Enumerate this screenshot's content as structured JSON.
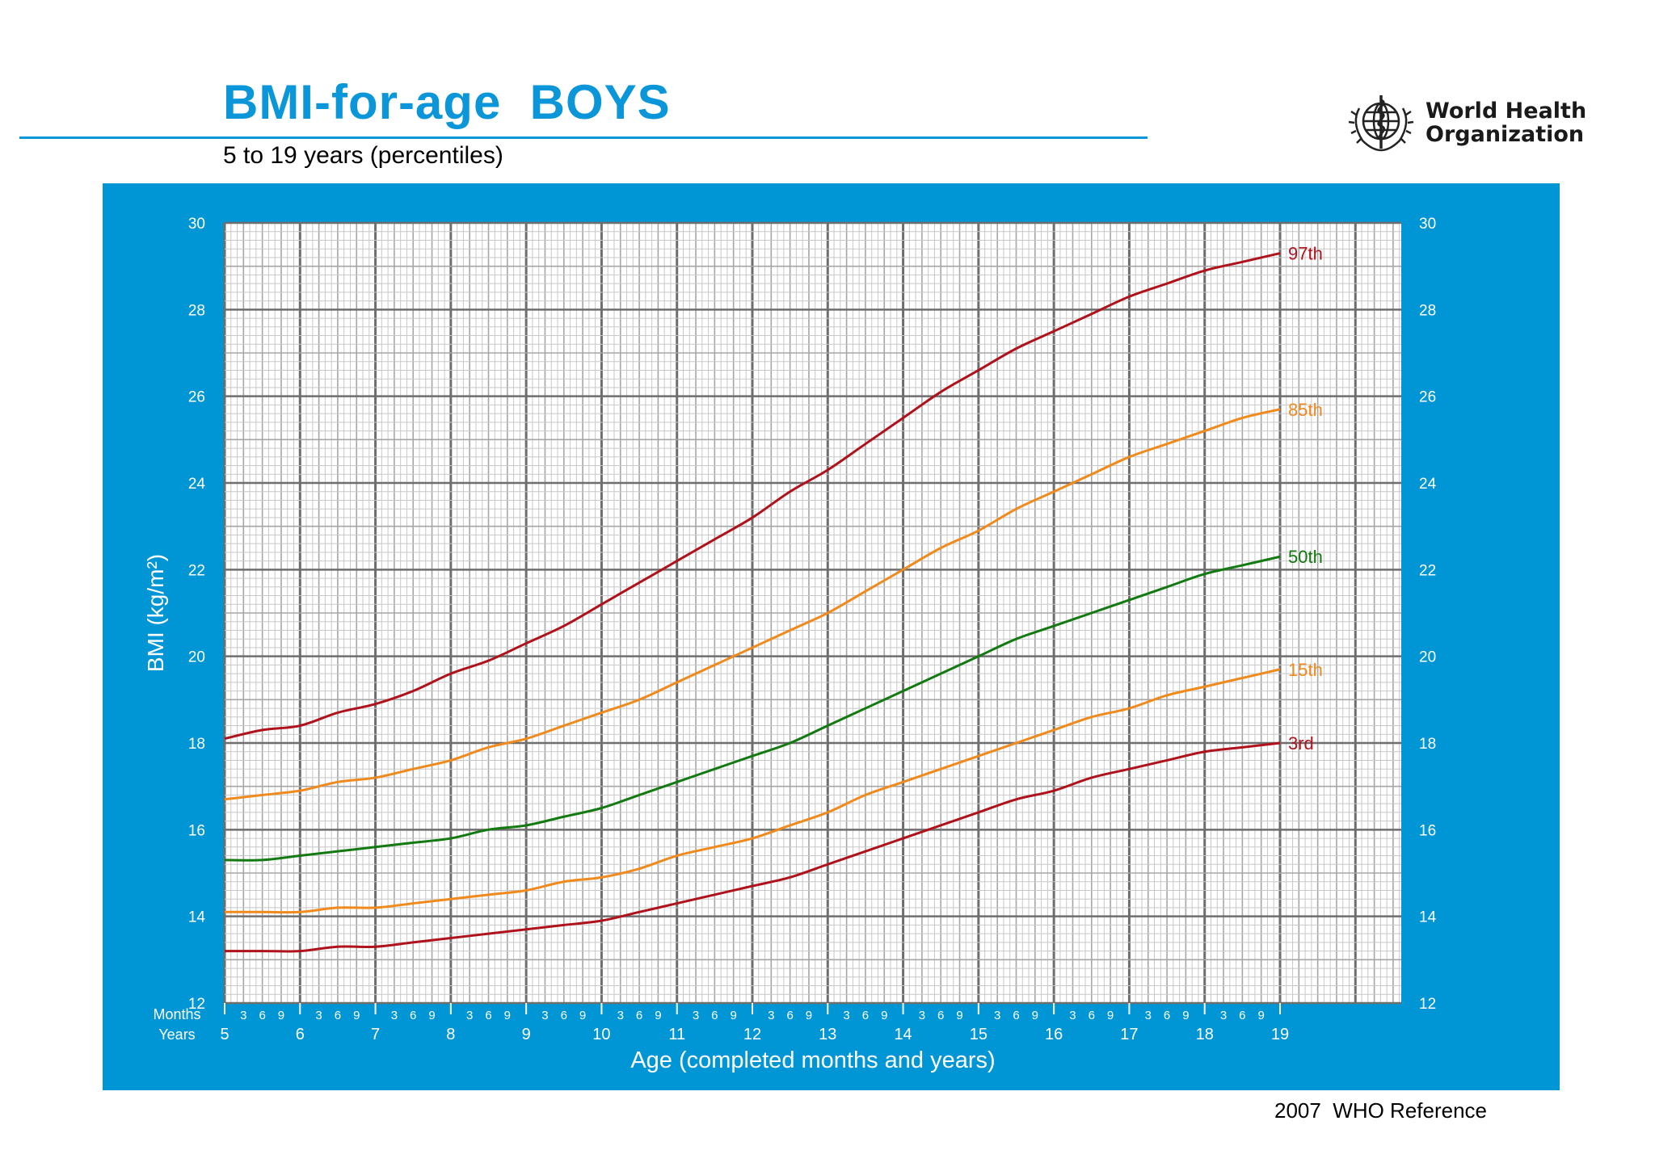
{
  "header": {
    "title": "BMI-for-age  BOYS",
    "subtitle": "5 to 19 years (percentiles)"
  },
  "logo": {
    "icon": "who-emblem-icon",
    "line1": "World Health",
    "line2": "Organization"
  },
  "footer": {
    "reference": "2007  WHO Reference"
  },
  "colors": {
    "brand_blue": "#0096d6",
    "title_blue": "#0a96d8",
    "p97": "#b0121b",
    "p85": "#f08a1d",
    "p50": "#137a12",
    "p15": "#f08a1d",
    "p3": "#b0121b"
  },
  "chart_data": {
    "type": "line",
    "ylabel": "BMI (kg/m²)",
    "xlabel": "Age (completed months and years)",
    "xlim": [
      5,
      19
    ],
    "ylim": [
      12,
      30
    ],
    "y_ticks": [
      "12",
      "14",
      "16",
      "18",
      "20",
      "22",
      "24",
      "26",
      "28",
      "30"
    ],
    "x_ticks_years": [
      "5",
      "6",
      "7",
      "8",
      "9",
      "10",
      "11",
      "12",
      "13",
      "14",
      "15",
      "16",
      "17",
      "18",
      "19"
    ],
    "month_ticks": [
      "3",
      "6",
      "9"
    ],
    "row_label_months": "Months",
    "row_label_years": "Years",
    "grid": true,
    "legend": "right-edge labels",
    "x": [
      5,
      5.5,
      6,
      6.5,
      7,
      7.5,
      8,
      8.5,
      9,
      9.5,
      10,
      10.5,
      11,
      11.5,
      12,
      12.5,
      13,
      13.5,
      14,
      14.5,
      15,
      15.5,
      16,
      16.5,
      17,
      17.5,
      18,
      18.5,
      19
    ],
    "series": [
      {
        "name": "97th",
        "color_key": "p97",
        "values": [
          18.1,
          18.3,
          18.4,
          18.7,
          18.9,
          19.2,
          19.6,
          19.9,
          20.3,
          20.7,
          21.2,
          21.7,
          22.2,
          22.7,
          23.2,
          23.8,
          24.3,
          24.9,
          25.5,
          26.1,
          26.6,
          27.1,
          27.5,
          27.9,
          28.3,
          28.6,
          28.9,
          29.1,
          29.3
        ]
      },
      {
        "name": "85th",
        "color_key": "p85",
        "values": [
          16.7,
          16.8,
          16.9,
          17.1,
          17.2,
          17.4,
          17.6,
          17.9,
          18.1,
          18.4,
          18.7,
          19.0,
          19.4,
          19.8,
          20.2,
          20.6,
          21.0,
          21.5,
          22.0,
          22.5,
          22.9,
          23.4,
          23.8,
          24.2,
          24.6,
          24.9,
          25.2,
          25.5,
          25.7
        ]
      },
      {
        "name": "50th",
        "color_key": "p50",
        "values": [
          15.3,
          15.3,
          15.4,
          15.5,
          15.6,
          15.7,
          15.8,
          16.0,
          16.1,
          16.3,
          16.5,
          16.8,
          17.1,
          17.4,
          17.7,
          18.0,
          18.4,
          18.8,
          19.2,
          19.6,
          20.0,
          20.4,
          20.7,
          21.0,
          21.3,
          21.6,
          21.9,
          22.1,
          22.3
        ]
      },
      {
        "name": "15th",
        "color_key": "p15",
        "values": [
          14.1,
          14.1,
          14.1,
          14.2,
          14.2,
          14.3,
          14.4,
          14.5,
          14.6,
          14.8,
          14.9,
          15.1,
          15.4,
          15.6,
          15.8,
          16.1,
          16.4,
          16.8,
          17.1,
          17.4,
          17.7,
          18.0,
          18.3,
          18.6,
          18.8,
          19.1,
          19.3,
          19.5,
          19.7
        ]
      },
      {
        "name": "3rd",
        "color_key": "p3",
        "values": [
          13.2,
          13.2,
          13.2,
          13.3,
          13.3,
          13.4,
          13.5,
          13.6,
          13.7,
          13.8,
          13.9,
          14.1,
          14.3,
          14.5,
          14.7,
          14.9,
          15.2,
          15.5,
          15.8,
          16.1,
          16.4,
          16.7,
          16.9,
          17.2,
          17.4,
          17.6,
          17.8,
          17.9,
          18.0
        ]
      }
    ]
  }
}
